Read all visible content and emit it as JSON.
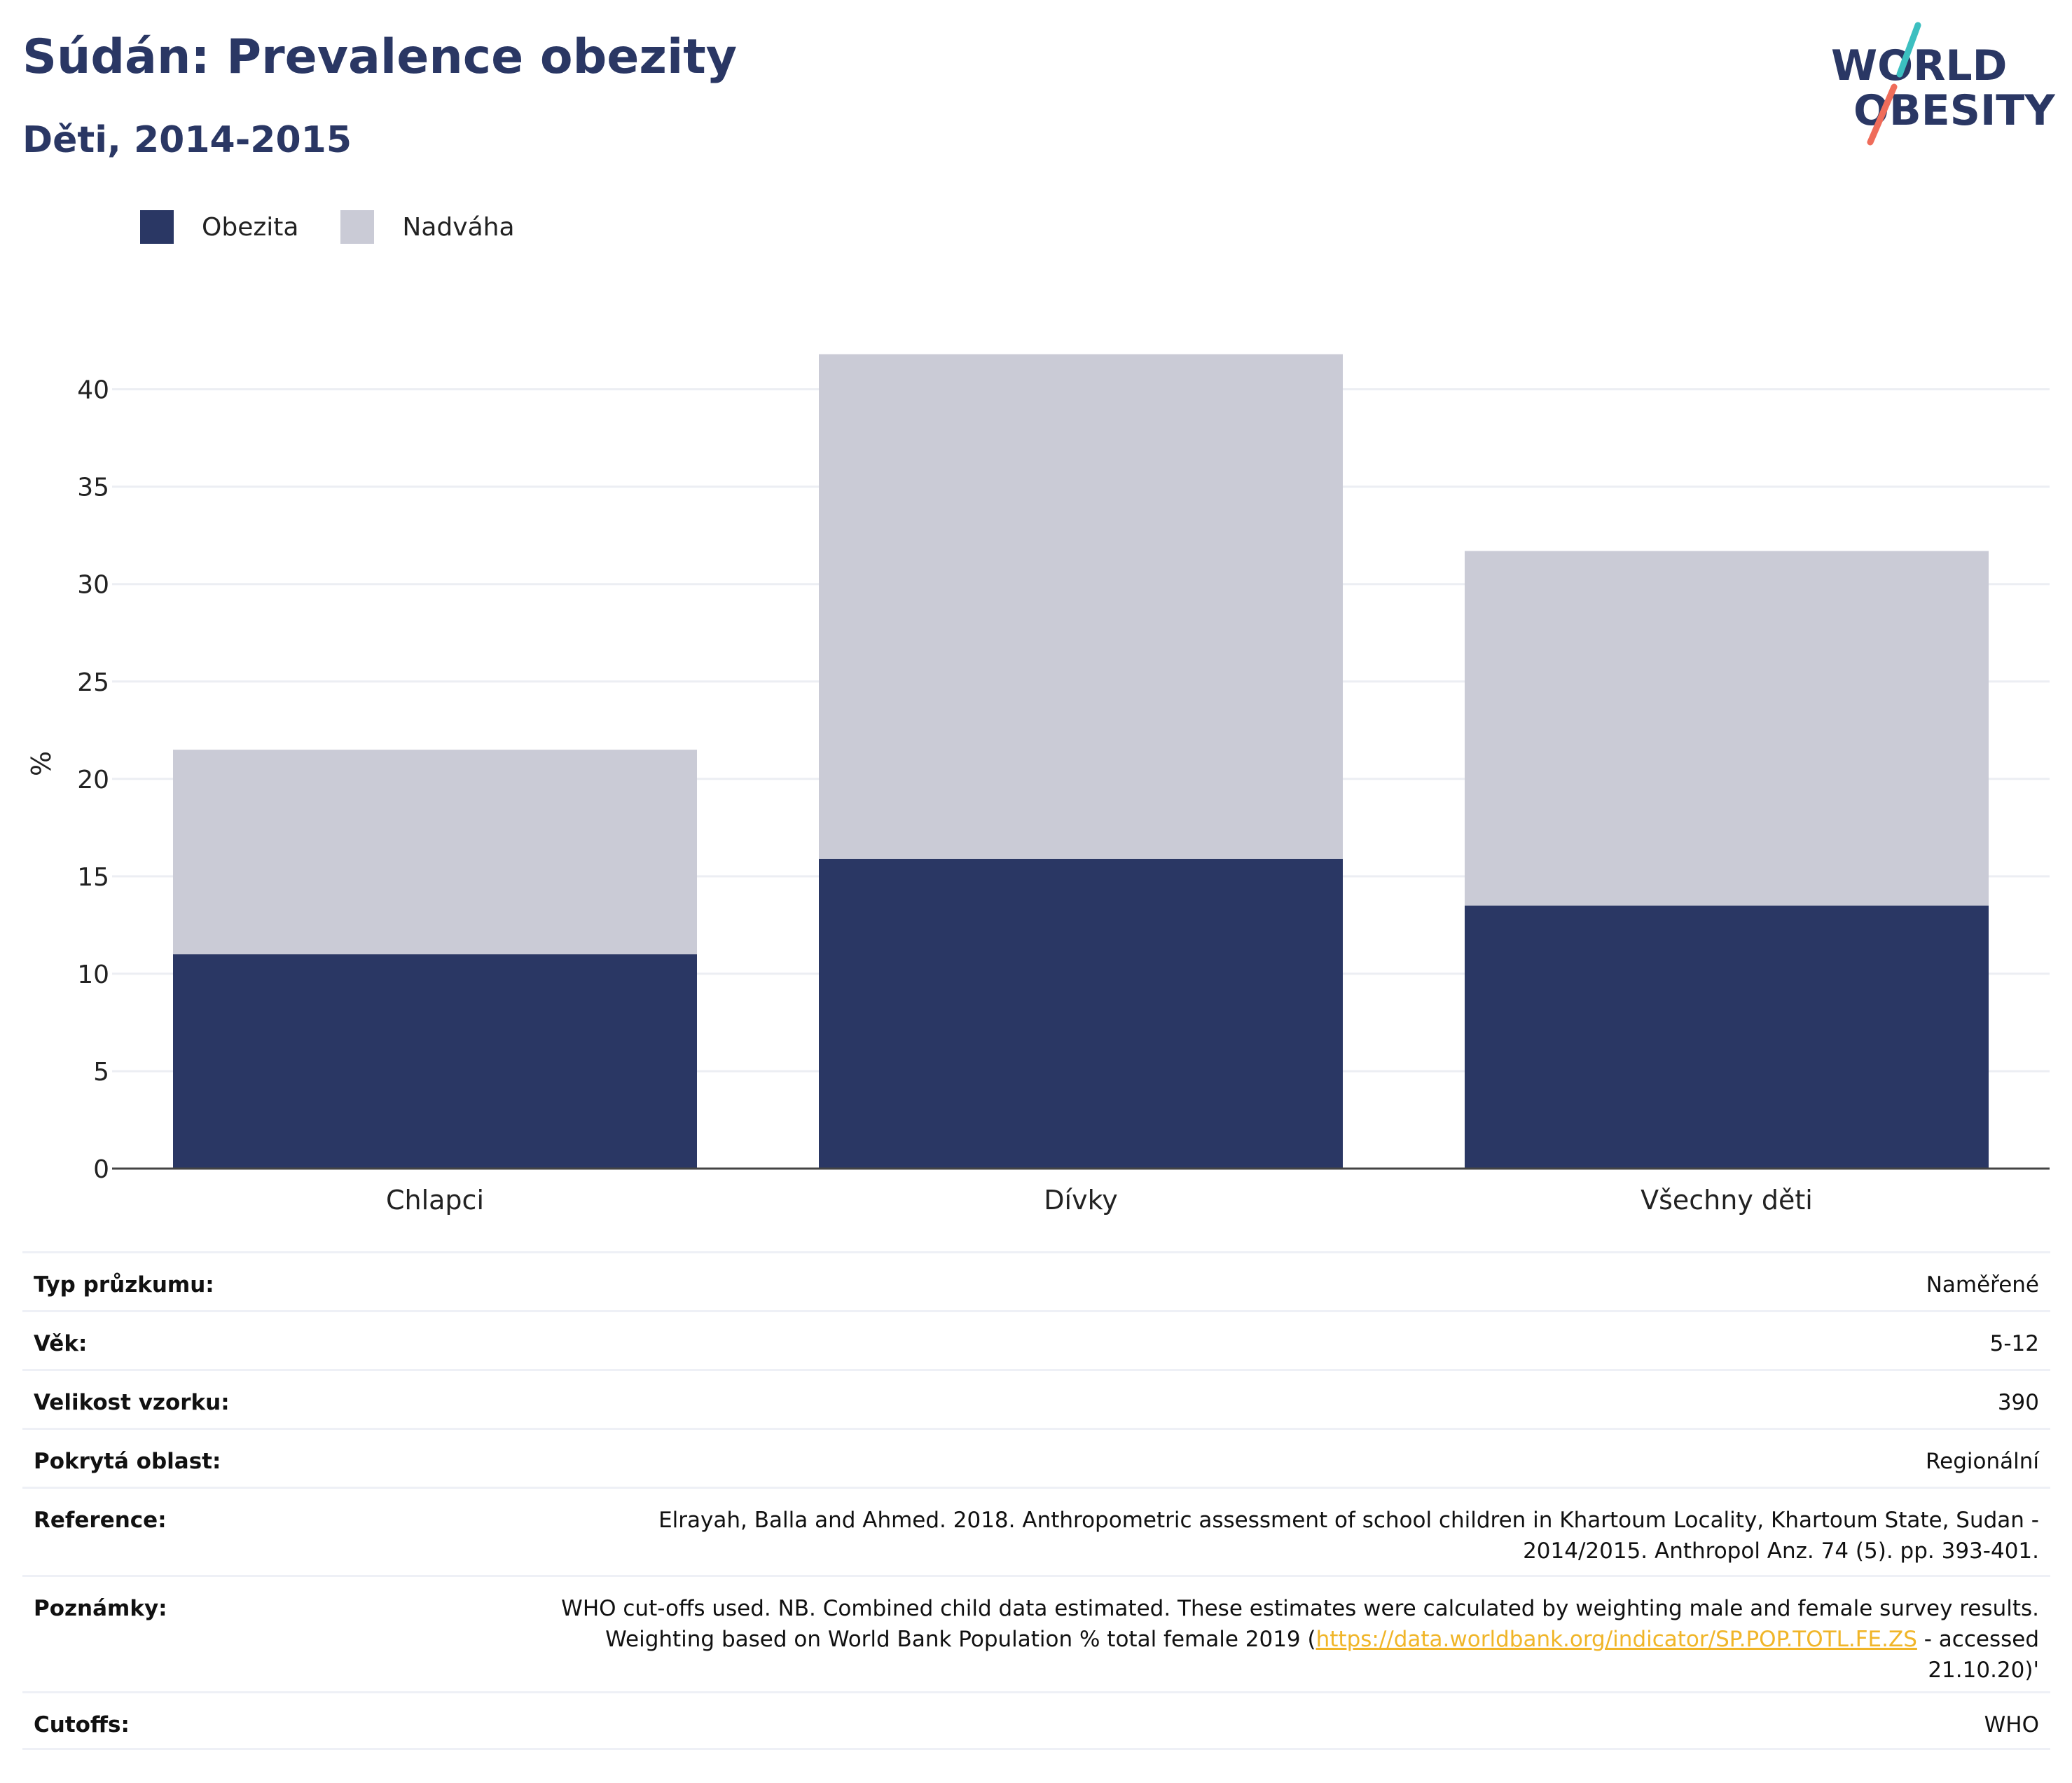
{
  "header": {
    "title": "Súdán: Prevalence obezity",
    "subtitle": "Děti, 2014-2015"
  },
  "logo": {
    "line1": "WORLD",
    "line2": "OBESITY",
    "colors": {
      "text": "#2a3764",
      "slash_top": "#3cbfc0",
      "slash_bottom": "#ef6c5a"
    }
  },
  "legend": {
    "items": [
      {
        "label": "Obezita",
        "color": "#2a3764"
      },
      {
        "label": "Nadváha",
        "color": "#cacbd6"
      }
    ]
  },
  "chart_data": {
    "type": "bar",
    "stacked": true,
    "categories": [
      "Chlapci",
      "Dívky",
      "Všechny děti"
    ],
    "series": [
      {
        "name": "Obezita",
        "values": [
          11.0,
          15.9,
          13.5
        ],
        "color": "#2a3764"
      },
      {
        "name": "Nadváha",
        "values": [
          10.5,
          25.9,
          18.2
        ],
        "color": "#cacbd6"
      }
    ],
    "ylabel": "%",
    "xlabel": "",
    "ylim": [
      0,
      42
    ],
    "yticks": [
      0,
      5,
      10,
      15,
      20,
      25,
      30,
      35,
      40
    ],
    "grid": true,
    "legend_position": "top-left"
  },
  "details": {
    "rows": [
      {
        "label": "Typ průzkumu:",
        "value": "Naměřené"
      },
      {
        "label": "Věk:",
        "value": "5-12"
      },
      {
        "label": "Velikost vzorku:",
        "value": "390"
      },
      {
        "label": "Pokrytá oblast:",
        "value": "Regionální"
      },
      {
        "label": "Reference:",
        "value": "Elrayah, Balla and Ahmed. 2018. Anthropometric assessment of school children in Khartoum Locality, Khartoum State, Sudan - 2014/2015. Anthropol Anz. 74 (5). pp. 393-401."
      },
      {
        "label": "Poznámky:",
        "value_before": "WHO cut-offs used. NB. Combined child data estimated. These estimates were calculated by weighting male and female survey results. Weighting based on World Bank Population % total female 2019 (",
        "link": "https://data.worldbank.org/indicator/SP.POP.TOTL.FE.ZS",
        "value_after": " - accessed 21.10.20)'"
      },
      {
        "label": "Cutoffs:",
        "value": "WHO"
      }
    ]
  }
}
